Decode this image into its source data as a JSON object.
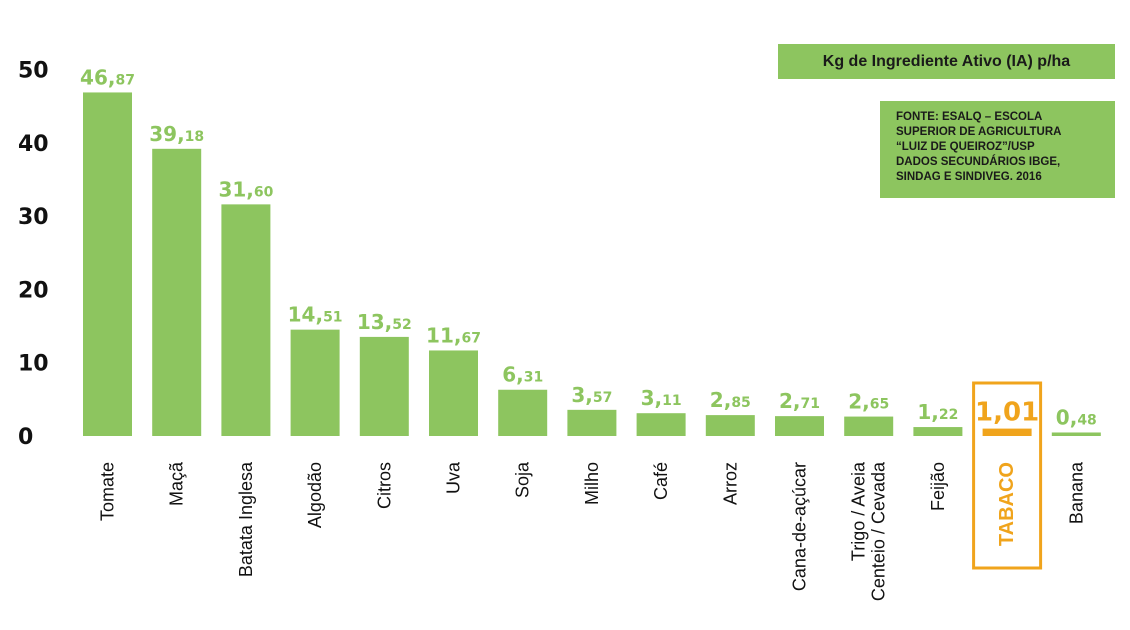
{
  "legend_label": "Kg de Ingrediente Ativo (IA) p/ha",
  "source_text": "FONTE: ESALQ – ESCOLA\nSUPERIOR DE AGRICULTURA\n“LUIZ DE QUEIROZ”/USP\nDADOS SECUNDÁRIOS IBGE,\nSINDAG E SINDIVEG. 2016",
  "colors": {
    "bar": "#8dc55f",
    "highlight": "#f0a41c",
    "text": "#111111"
  },
  "chart_data": {
    "type": "bar",
    "title": "",
    "xlabel": "",
    "ylabel": "",
    "ylim": [
      0,
      50
    ],
    "yticks": [
      0,
      10,
      20,
      30,
      40,
      50
    ],
    "categories": [
      "Tomate",
      "Maçã",
      "Batata Inglesa",
      "Algodão",
      "Citros",
      "Uva",
      "Soja",
      "Milho",
      "Café",
      "Arroz",
      "Cana-de-açúcar",
      "Trigo / Aveia\nCenteio / Cevada",
      "Feijão",
      "TABACO",
      "Banana"
    ],
    "values": [
      46.87,
      39.18,
      31.6,
      14.51,
      13.52,
      11.67,
      6.31,
      3.57,
      3.11,
      2.85,
      2.71,
      2.65,
      1.22,
      1.01,
      0.48
    ],
    "value_labels": [
      [
        "46",
        "87"
      ],
      [
        "39",
        "18"
      ],
      [
        "31",
        "60"
      ],
      [
        "14",
        "51"
      ],
      [
        "13",
        "52"
      ],
      [
        "11",
        "67"
      ],
      [
        "6",
        "31"
      ],
      [
        "3",
        "57"
      ],
      [
        "3",
        "11"
      ],
      [
        "2",
        "85"
      ],
      [
        "2",
        "71"
      ],
      [
        "2",
        "65"
      ],
      [
        "1",
        "22"
      ],
      [
        "1",
        "01"
      ],
      [
        "0",
        "48"
      ]
    ],
    "highlight_category": "TABACO",
    "grid": false,
    "legend_position": "top-right"
  }
}
